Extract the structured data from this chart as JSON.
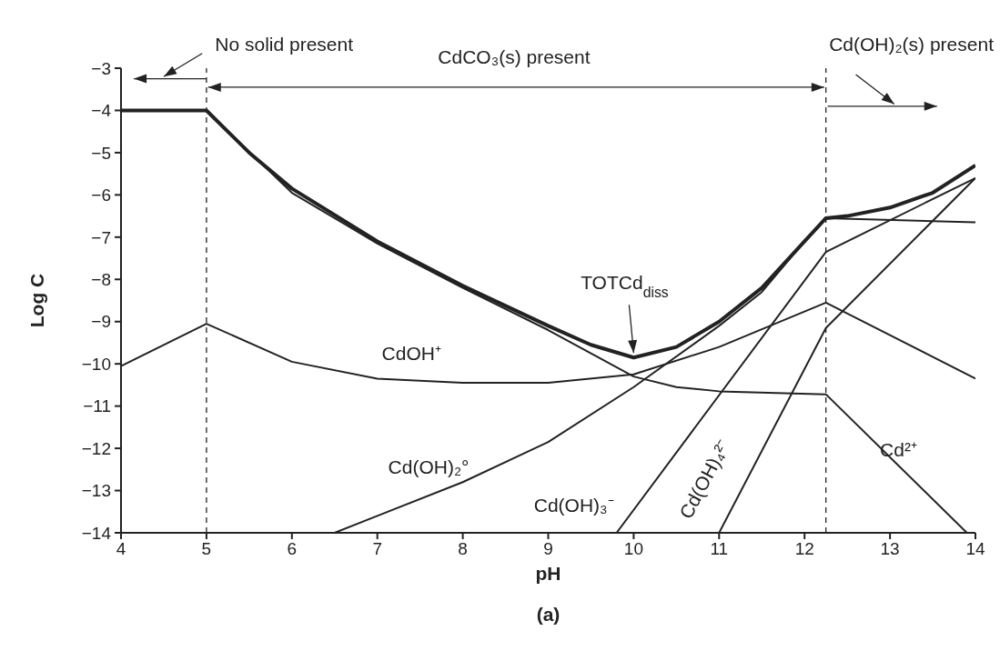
{
  "chart_data": {
    "type": "line",
    "xlabel": "pH",
    "ylabel": "Log C",
    "xlim": [
      4,
      14
    ],
    "ylim": [
      -14,
      -3
    ],
    "xticks": [
      4,
      5,
      6,
      7,
      8,
      9,
      10,
      11,
      12,
      13,
      14
    ],
    "yticks": [
      -3,
      -4,
      -5,
      -6,
      -7,
      -8,
      -9,
      -10,
      -11,
      -12,
      -13,
      -14
    ],
    "grid": false,
    "legend": false,
    "marker": "none",
    "line_style": "solid",
    "series": [
      {
        "color": "#222222",
        "x": [
          4,
          5,
          5.5,
          6,
          7,
          8,
          9,
          9.5,
          10,
          10.5,
          11,
          11.5,
          12,
          12.25,
          12.5,
          13,
          13.5,
          14
        ],
        "values": [
          -4,
          -4,
          -5.0,
          -5.85,
          -7.1,
          -8.15,
          -9.1,
          -9.55,
          -9.85,
          -9.6,
          -9.0,
          -8.2,
          -7.1,
          -6.55,
          -6.5,
          -6.3,
          -5.95,
          -5.3
        ]
      },
      {
        "name": "CdOH⁺",
        "color": "#222222",
        "x": [
          4,
          5,
          6,
          7,
          8,
          9,
          10,
          11,
          12.25,
          14
        ],
        "values": [
          -10.05,
          -9.05,
          -9.95,
          -10.35,
          -10.45,
          -10.45,
          -10.25,
          -9.6,
          -8.55,
          -10.35
        ]
      },
      {
        "name": "Cd(OH)₂°",
        "color": "#222222",
        "x": [
          6.5,
          7,
          8,
          9,
          10,
          11,
          11.5,
          12,
          12.25,
          14
        ],
        "values": [
          -14,
          -13.6,
          -12.8,
          -11.85,
          -10.55,
          -9.1,
          -8.3,
          -7.1,
          -6.55,
          -6.65
        ]
      },
      {
        "name": "Cd(OH)₃⁻",
        "color": "#222222",
        "x": [
          9.8,
          12.25,
          14
        ],
        "values": [
          -14,
          -7.35,
          -5.6
        ]
      },
      {
        "name": "Cd(OH)₄²⁻",
        "color": "#222222",
        "x": [
          11,
          12.25,
          14
        ],
        "values": [
          -14,
          -9.15,
          -5.6
        ]
      },
      {
        "name": "Cd²⁺",
        "color": "#222222",
        "x": [
          4,
          5,
          6,
          7,
          8,
          9,
          9.5,
          10,
          10.5,
          11,
          12.25,
          13.9
        ],
        "values": [
          -4,
          -4,
          -5.95,
          -7.15,
          -8.2,
          -9.2,
          -9.75,
          -10.3,
          -10.55,
          -10.65,
          -10.72,
          -14
        ]
      }
    ],
    "ref_lines": [
      {
        "axis": "x",
        "value": 5,
        "line_style": "dashed"
      },
      {
        "axis": "x",
        "value": 12.25,
        "line_style": "dashed"
      }
    ],
    "annotations": [
      "No solid present",
      "CdCO₃(s) present",
      "Cd(OH)₂(s) present",
      {
        "text": "TOTCd$_{diss}$",
        "x": 10,
        "y": -9.85
      },
      "(a)"
    ]
  }
}
